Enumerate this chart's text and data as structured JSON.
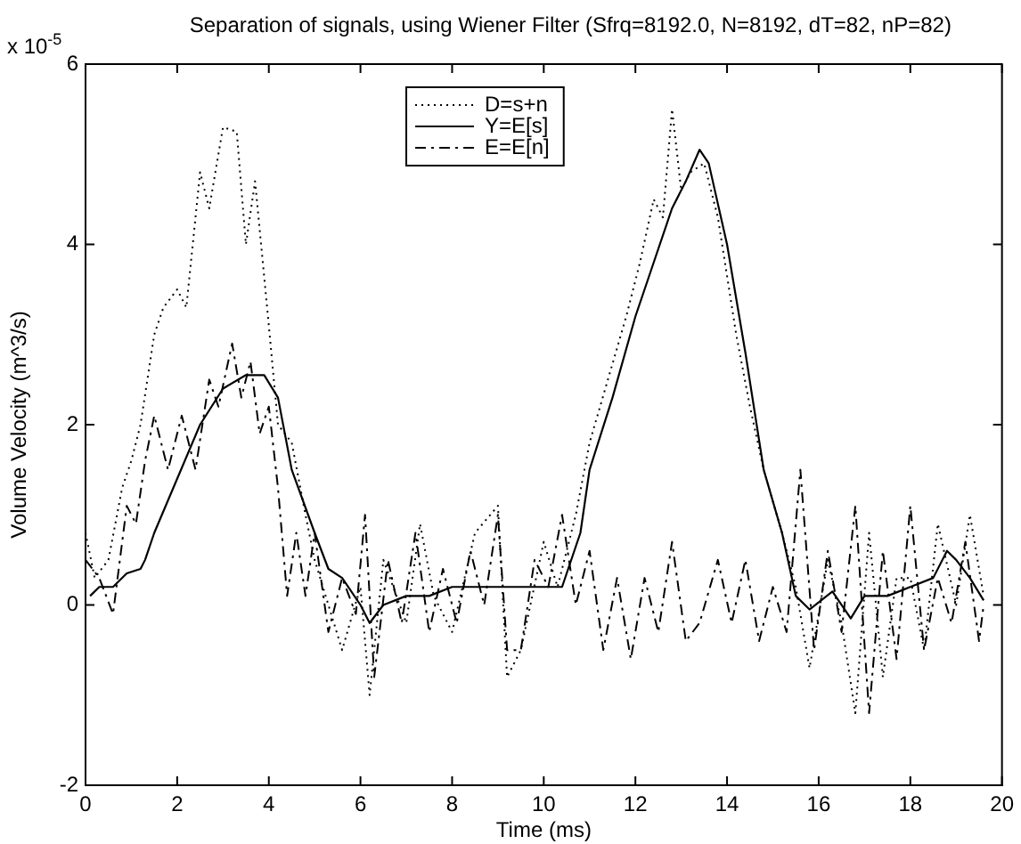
{
  "chart_data": {
    "type": "line",
    "title": "Separation of signals, using Wiener Filter (Sfrq=8192.0, N=8192, dT=82, nP=82)",
    "xlabel": "Time (ms)",
    "ylabel": "Volume Velocity (m^3/s)",
    "annotations": [
      "x 10$^{-5}$"
    ],
    "xlim": [
      0,
      20
    ],
    "ylim": [
      -2,
      6
    ],
    "xticks": [
      0,
      2,
      4,
      6,
      8,
      10,
      12,
      14,
      16,
      18,
      20
    ],
    "yticks": [
      -2,
      0,
      2,
      4,
      6
    ],
    "grid": false,
    "legend": "top",
    "marker": "none",
    "series": [
      {
        "name": "D=s+n",
        "color": "#000000",
        "line_style": "dotted",
        "x": [
          0,
          0.2,
          0.5,
          0.8,
          1,
          1.2,
          1.5,
          1.7,
          2,
          2.2,
          2.5,
          2.7,
          3,
          3.3,
          3.5,
          3.7,
          4,
          4.2,
          4.5,
          4.8,
          5,
          5.3,
          5.6,
          6,
          6.2,
          6.5,
          7,
          7.3,
          7.6,
          8,
          8.5,
          9,
          9.2,
          9.5,
          10,
          10.3,
          10.7,
          11,
          11.4,
          11.8,
          12.1,
          12.4,
          12.6,
          12.8,
          13,
          13.2,
          13.5,
          13.8,
          14.2,
          14.5,
          14.8,
          15.2,
          15.5,
          15.8,
          16.2,
          16.5,
          16.8,
          17.1,
          17.4,
          17.7,
          18,
          18.3,
          18.6,
          19,
          19.3,
          19.6
        ],
        "values": [
          0.8,
          0.3,
          0.5,
          1.3,
          1.6,
          2.0,
          3.0,
          3.3,
          3.5,
          3.3,
          4.8,
          4.4,
          5.3,
          5.25,
          4.0,
          4.7,
          3.1,
          2.0,
          1.8,
          1.0,
          0.5,
          0.0,
          -0.5,
          0.2,
          -1.0,
          0.5,
          -0.2,
          0.9,
          0.1,
          -0.3,
          0.8,
          1.1,
          -0.8,
          -0.5,
          0.7,
          0.2,
          1.0,
          1.8,
          2.5,
          3.2,
          3.8,
          4.5,
          4.3,
          5.5,
          4.6,
          4.8,
          4.9,
          4.3,
          3.0,
          2.2,
          1.5,
          0.8,
          0.2,
          -0.7,
          0.5,
          -0.2,
          -1.2,
          0.8,
          -0.8,
          0.3,
          0.3,
          -0.5,
          0.9,
          0.0,
          1.0,
          0.1
        ]
      },
      {
        "name": "Y=E[s]",
        "color": "#000000",
        "line_style": "solid",
        "x": [
          0.1,
          0.3,
          0.6,
          0.9,
          1.2,
          1.3,
          1.5,
          2,
          2.5,
          3,
          3.5,
          3.9,
          4.2,
          4.5,
          5,
          5.3,
          5.6,
          6,
          6.2,
          6.5,
          7,
          7.5,
          8,
          9,
          9.5,
          10.4,
          10.8,
          11,
          11.5,
          12,
          12.4,
          12.8,
          13.1,
          13.4,
          13.6,
          14,
          14.4,
          14.8,
          15.2,
          15.5,
          15.8,
          16.3,
          16.7,
          17,
          17.5,
          18,
          18.5,
          18.8,
          19,
          19.3,
          19.6
        ],
        "values": [
          0.1,
          0.2,
          0.2,
          0.35,
          0.4,
          0.5,
          0.8,
          1.4,
          2.0,
          2.4,
          2.55,
          2.55,
          2.3,
          1.5,
          0.8,
          0.4,
          0.3,
          0.0,
          -0.2,
          0.0,
          0.1,
          0.1,
          0.2,
          0.2,
          0.2,
          0.2,
          0.8,
          1.5,
          2.3,
          3.2,
          3.8,
          4.4,
          4.7,
          5.05,
          4.9,
          4.0,
          2.8,
          1.5,
          0.8,
          0.1,
          -0.05,
          0.15,
          -0.15,
          0.1,
          0.1,
          0.2,
          0.3,
          0.6,
          0.5,
          0.3,
          0.05
        ]
      },
      {
        "name": "E=E[n]",
        "color": "#000000",
        "line_style": "dashed",
        "x": [
          0,
          0.3,
          0.6,
          0.9,
          1.1,
          1.3,
          1.5,
          1.8,
          2.1,
          2.4,
          2.7,
          2.9,
          3.2,
          3.4,
          3.6,
          3.8,
          4.0,
          4.2,
          4.4,
          4.6,
          4.8,
          5.0,
          5.3,
          5.6,
          5.9,
          6.1,
          6.3,
          6.6,
          6.9,
          7.2,
          7.5,
          7.8,
          8.1,
          8.4,
          8.7,
          9.0,
          9.2,
          9.5,
          9.8,
          10.1,
          10.4,
          10.7,
          11.0,
          11.3,
          11.6,
          11.9,
          12.2,
          12.5,
          12.8,
          13.1,
          13.4,
          13.8,
          14.1,
          14.4,
          14.7,
          15.0,
          15.3,
          15.6,
          15.9,
          16.2,
          16.5,
          16.8,
          17.1,
          17.4,
          17.7,
          18.0,
          18.3,
          18.6,
          18.9,
          19.2,
          19.5,
          19.6
        ],
        "values": [
          0.5,
          0.3,
          -0.1,
          1.1,
          0.9,
          1.6,
          2.1,
          1.5,
          2.1,
          1.5,
          2.5,
          2.2,
          2.9,
          2.3,
          2.7,
          1.9,
          2.2,
          1.3,
          0.1,
          0.8,
          0.1,
          0.8,
          -0.3,
          0.3,
          -0.1,
          1.0,
          -0.8,
          0.5,
          -0.2,
          0.8,
          -0.3,
          0.4,
          -0.2,
          0.6,
          0.0,
          1.0,
          -0.5,
          -0.5,
          0.5,
          0.2,
          1.0,
          0.0,
          0.6,
          -0.5,
          0.3,
          -0.6,
          0.3,
          -0.3,
          0.7,
          -0.4,
          -0.2,
          0.5,
          -0.2,
          0.5,
          -0.4,
          0.2,
          -0.3,
          1.5,
          -0.5,
          0.6,
          -0.3,
          1.1,
          -1.2,
          0.6,
          -0.6,
          1.1,
          -0.5,
          0.3,
          -0.2,
          0.7,
          -0.4,
          0.0
        ]
      }
    ]
  }
}
